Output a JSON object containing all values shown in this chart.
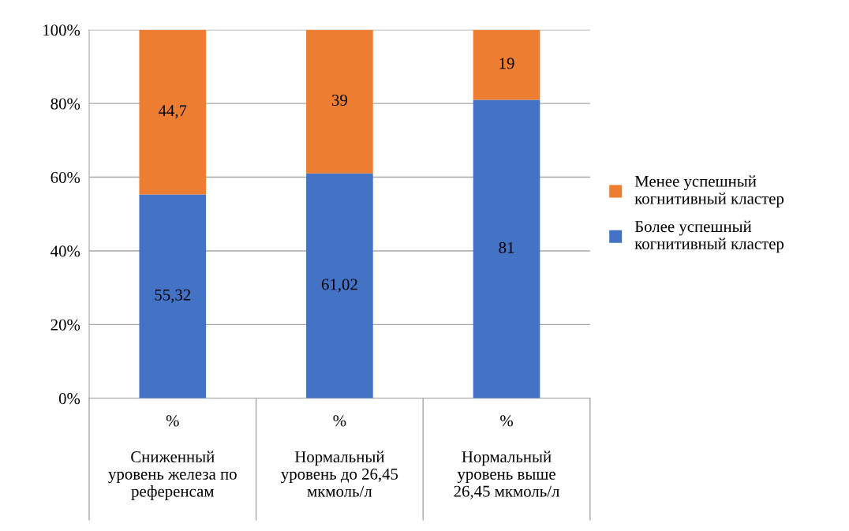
{
  "chart_data": {
    "type": "bar",
    "stacked": true,
    "categories": [
      "Сниженный\nуровень железа по\nреференсам",
      "Нормальный\nуровень до 26,45\nмкмоль/л",
      "Нормальный\nуровень выше\n26,45 мкмоль/л"
    ],
    "series": [
      {
        "name": "Более успешный\nкогнитивный кластер",
        "color": "#4472c4",
        "values": [
          55.32,
          61.02,
          81
        ],
        "value_labels": [
          "55,32",
          "61,02",
          "81"
        ]
      },
      {
        "name": "Менее успешный\nкогнитивный кластер",
        "color": "#ed7d31",
        "values": [
          44.7,
          39,
          19
        ],
        "value_labels": [
          "44,7",
          "39",
          "19"
        ]
      }
    ],
    "annotations": [
      "%",
      "%",
      "%"
    ],
    "ylim": [
      0,
      100.02
    ],
    "yticks": [
      {
        "value": 0,
        "label": "0%"
      },
      {
        "value": 20,
        "label": "20%"
      },
      {
        "value": 40,
        "label": "40%"
      },
      {
        "value": 60,
        "label": "60%"
      },
      {
        "value": 80,
        "label": "80%"
      },
      {
        "value": 100,
        "label": "100%"
      }
    ],
    "grid": "y",
    "legend": "right"
  }
}
